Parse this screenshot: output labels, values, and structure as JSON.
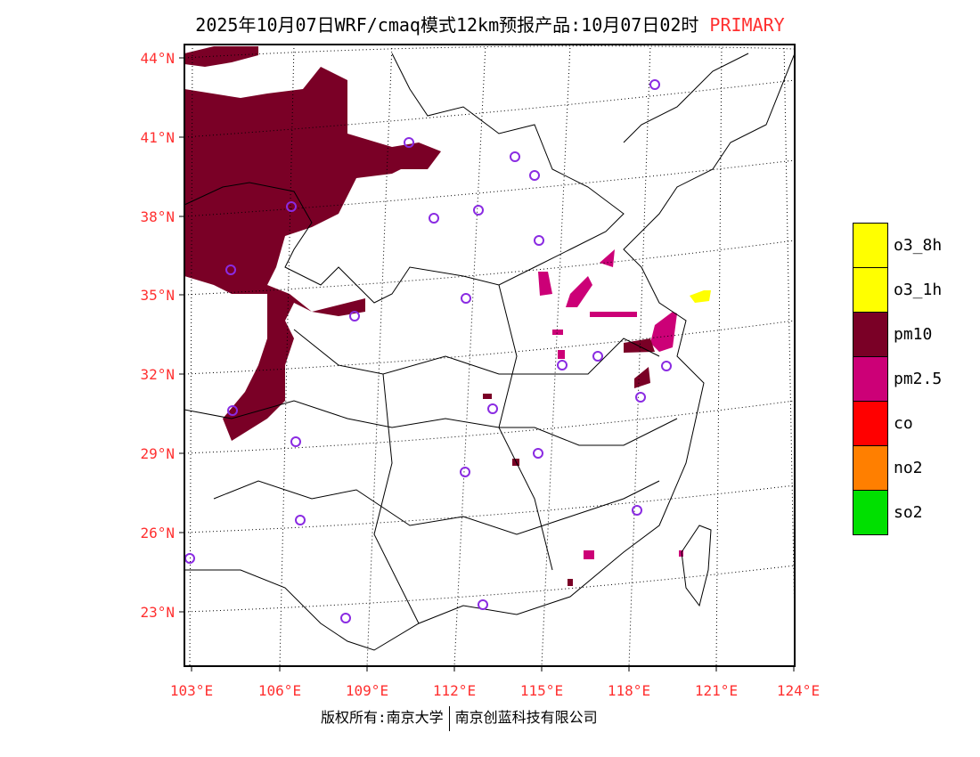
{
  "title": {
    "text": "2025年10月07日WRF/cmaq模式12km预报产品:10月07日02时",
    "tag": "PRIMARY"
  },
  "lat_labels": [
    "44°N",
    "41°N",
    "38°N",
    "35°N",
    "32°N",
    "29°N",
    "26°N",
    "23°N"
  ],
  "lon_labels": [
    "103°E",
    "106°E",
    "109°E",
    "112°E",
    "115°E",
    "118°E",
    "121°E",
    "124°E"
  ],
  "legend": [
    {
      "label": "o3_8h",
      "color": "#ffff00"
    },
    {
      "label": "o3_1h",
      "color": "#ffff00"
    },
    {
      "label": "pm10",
      "color": "#7a0026"
    },
    {
      "label": "pm2.5",
      "color": "#cc0077"
    },
    {
      "label": "co",
      "color": "#ff0000"
    },
    {
      "label": "no2",
      "color": "#ff7f00"
    },
    {
      "label": "so2",
      "color": "#00e000"
    }
  ],
  "copyright": {
    "left": "版权所有:南京大学",
    "right": "南京创蓝科技有限公司"
  },
  "colors": {
    "pm10": "#7a0026",
    "pm25": "#cc0077",
    "o3": "#ffff00",
    "station": "#8a2be2",
    "axis_label": "#ff3030"
  }
}
